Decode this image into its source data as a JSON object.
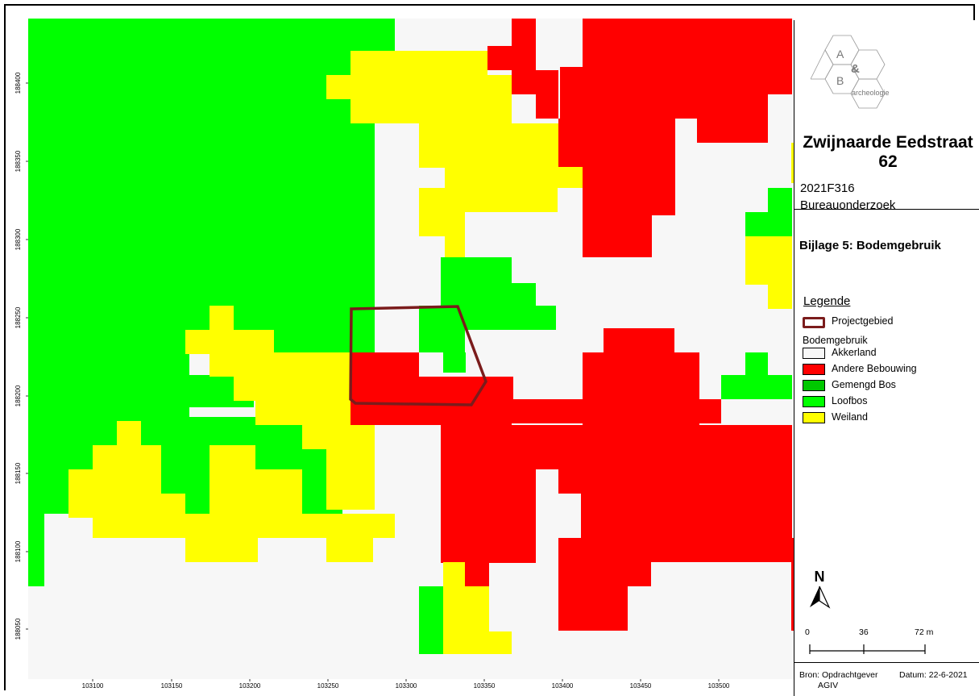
{
  "map": {
    "x_ticks": [
      "103100",
      "103150",
      "103200",
      "103250",
      "103300",
      "103350",
      "103400",
      "103450",
      "103500"
    ],
    "y_ticks": [
      "188400",
      "188350",
      "188300",
      "188250",
      "188200",
      "188150",
      "188100",
      "188050"
    ]
  },
  "logo": {
    "letter_a": "A",
    "letter_amp": "&",
    "letter_b": "B",
    "text": "archeologie"
  },
  "project": {
    "title": "Zwijnaarde Eedstraat 62",
    "code": "2021F316",
    "type": "Bureauonderzoek"
  },
  "annex": {
    "title": "Bijlage 5: Bodemgebruik"
  },
  "legend": {
    "title": "Legende",
    "project_area": "Projectgebied",
    "group_title": "Bodemgebruik",
    "classes": [
      {
        "label": "Akkerland",
        "color": "#f7f7f7"
      },
      {
        "label": "Andere Bebouwing",
        "color": "#ff0000"
      },
      {
        "label": "Gemengd Bos",
        "color": "#00c800"
      },
      {
        "label": "Loofbos",
        "color": "#00ff00"
      },
      {
        "label": "Weiland",
        "color": "#ffff00"
      }
    ],
    "project_color": "#7b1c1c"
  },
  "north": {
    "label": "N"
  },
  "scale": {
    "labels": [
      "0",
      "36",
      "72 m"
    ]
  },
  "footer": {
    "source_line1": "Bron: Opdrachtgever",
    "source_line2": "AGIV",
    "date": "Datum: 22-6-2021"
  }
}
